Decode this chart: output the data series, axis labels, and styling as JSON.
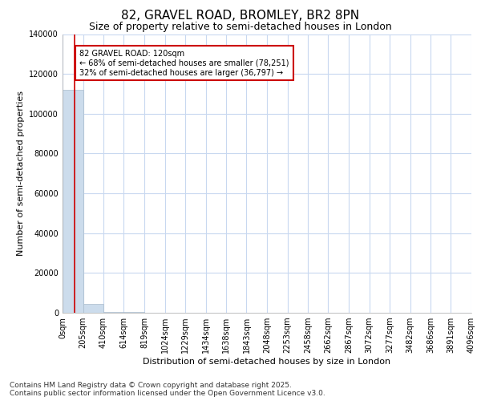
{
  "title": "82, GRAVEL ROAD, BROMLEY, BR2 8PN",
  "subtitle": "Size of property relative to semi-detached houses in London",
  "xlabel": "Distribution of semi-detached houses by size in London",
  "ylabel": "Number of semi-detached properties",
  "property_size": 120,
  "property_label": "82 GRAVEL ROAD: 120sqm",
  "pct_smaller": 68,
  "count_smaller": 78251,
  "pct_larger": 32,
  "count_larger": 36797,
  "bar_color": "#ccdcec",
  "bar_edge_color": "#aabccc",
  "vline_color": "#cc0000",
  "annotation_box_color": "#cc0000",
  "background_color": "#ffffff",
  "grid_color": "#c8d8f0",
  "bins": [
    0,
    205,
    410,
    614,
    819,
    1024,
    1229,
    1434,
    1638,
    1843,
    2048,
    2253,
    2458,
    2662,
    2867,
    3072,
    3277,
    3482,
    3686,
    3891,
    4096
  ],
  "counts": [
    112000,
    4500,
    600,
    250,
    150,
    100,
    70,
    50,
    35,
    25,
    18,
    14,
    10,
    8,
    6,
    5,
    4,
    3,
    2,
    2
  ],
  "tick_labels": [
    "0sqm",
    "205sqm",
    "410sqm",
    "614sqm",
    "819sqm",
    "1024sqm",
    "1229sqm",
    "1434sqm",
    "1638sqm",
    "1843sqm",
    "2048sqm",
    "2253sqm",
    "2458sqm",
    "2662sqm",
    "2867sqm",
    "3072sqm",
    "3277sqm",
    "3482sqm",
    "3686sqm",
    "3891sqm",
    "4096sqm"
  ],
  "ylim": [
    0,
    140000
  ],
  "yticks": [
    0,
    20000,
    40000,
    60000,
    80000,
    100000,
    120000,
    140000
  ],
  "ytick_labels": [
    "0",
    "20000",
    "40000",
    "60000",
    "80000",
    "100000",
    "120000",
    "140000"
  ],
  "footer_text": "Contains HM Land Registry data © Crown copyright and database right 2025.\nContains public sector information licensed under the Open Government Licence v3.0.",
  "title_fontsize": 11,
  "subtitle_fontsize": 9,
  "axis_label_fontsize": 8,
  "tick_fontsize": 7,
  "footer_fontsize": 6.5
}
